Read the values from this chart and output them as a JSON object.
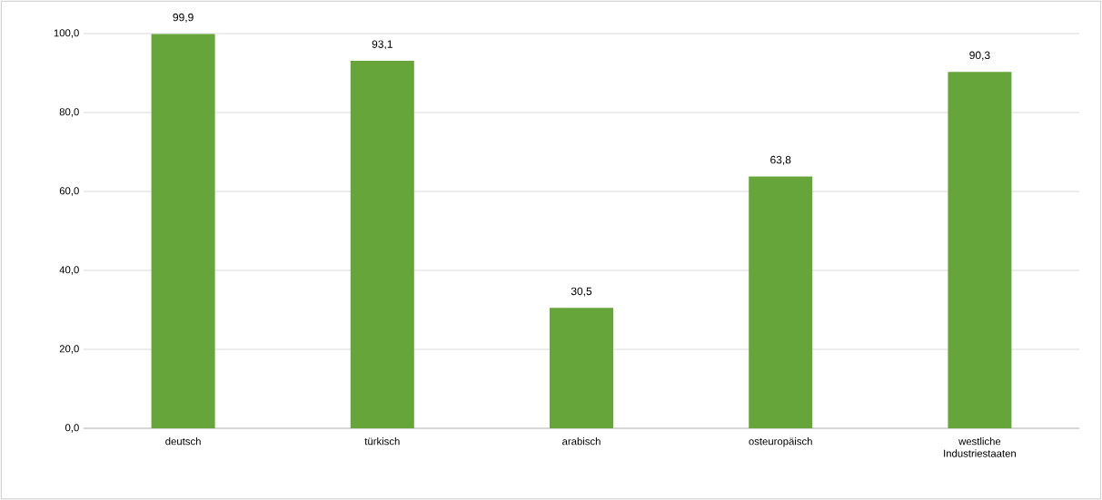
{
  "chart_data": {
    "type": "bar",
    "categories": [
      "deutsch",
      "türkisch",
      "arabisch",
      "osteuropäisch",
      "westliche Industriestaaten"
    ],
    "values": [
      99.9,
      93.1,
      30.5,
      63.8,
      90.3
    ],
    "value_labels": [
      "99,9",
      "93,1",
      "30,5",
      "63,8",
      "90,3"
    ],
    "color": "#66a53a",
    "ylim": [
      0,
      100
    ],
    "yticks": [
      {
        "value": 0,
        "label": "0,0"
      },
      {
        "value": 20,
        "label": "20,0"
      },
      {
        "value": 40,
        "label": "40,0"
      },
      {
        "value": 60,
        "label": "60,0"
      },
      {
        "value": 80,
        "label": "80,0"
      },
      {
        "value": 100,
        "label": "100,0"
      }
    ],
    "grid": "y"
  }
}
